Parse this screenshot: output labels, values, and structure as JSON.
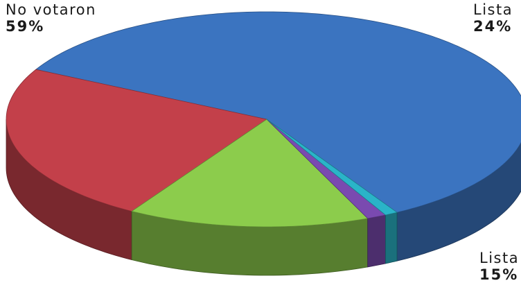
{
  "chart_data": {
    "type": "pie",
    "style": "3d",
    "slices": [
      {
        "label": "No votaron",
        "value_label": "59%",
        "value": 59,
        "color": "#3b74c0"
      },
      {
        "label": "Lista",
        "value_label": "24%",
        "value": 24,
        "color": "#c3404a"
      },
      {
        "label": "Lista",
        "value_label": "15%",
        "value": 15,
        "color": "#8ccc4c"
      },
      {
        "label": "",
        "value_label": "",
        "value": 1.2,
        "color": "#7a4ab0"
      },
      {
        "label": "",
        "value_label": "",
        "value": 0.8,
        "color": "#2ab4c8"
      }
    ]
  }
}
